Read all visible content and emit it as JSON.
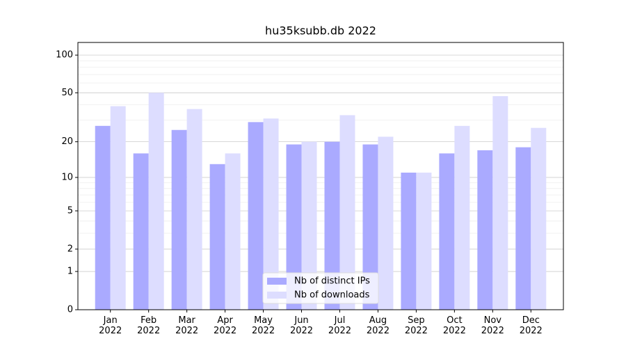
{
  "chart_data": {
    "type": "bar",
    "title": "hu35ksubb.db 2022",
    "categories": [
      "Jan\n2022",
      "Feb\n2022",
      "Mar\n2022",
      "Apr\n2022",
      "May\n2022",
      "Jun\n2022",
      "Jul\n2022",
      "Aug\n2022",
      "Sep\n2022",
      "Oct\n2022",
      "Nov\n2022",
      "Dec\n2022"
    ],
    "series": [
      {
        "name": "Nb of distinct IPs",
        "color": "#aaaaff",
        "values": [
          27,
          16,
          25,
          13,
          29,
          19,
          20,
          19,
          11,
          16,
          17,
          18
        ]
      },
      {
        "name": "Nb of downloads",
        "color": "#ddddff",
        "values": [
          39,
          50,
          37,
          16,
          31,
          20,
          33,
          22,
          11,
          27,
          47,
          26
        ]
      }
    ],
    "yscale": "log1p",
    "ylim": [
      0,
      126
    ],
    "yticks": [
      0,
      1,
      2,
      5,
      10,
      20,
      50,
      100
    ],
    "minor_yticks": [
      3,
      4,
      6,
      7,
      8,
      9,
      30,
      40,
      60,
      70,
      80,
      90
    ],
    "grid": true,
    "legend": "lower center"
  }
}
